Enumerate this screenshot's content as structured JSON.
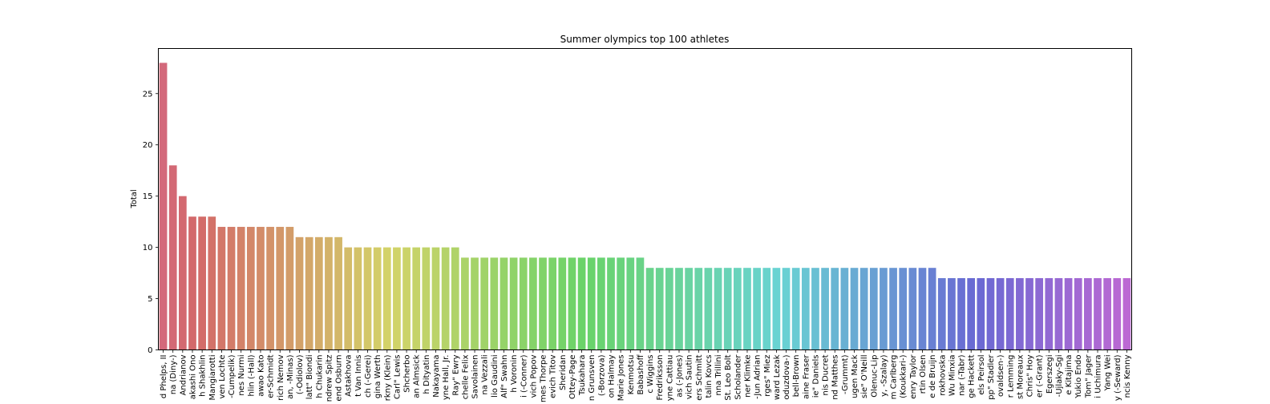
{
  "chart_data": {
    "type": "bar",
    "title": "Summer olympics top 100 athletes",
    "xlabel": "",
    "ylabel": "Total",
    "ylim": [
      0,
      29.4
    ],
    "yticks": [
      0,
      5,
      10,
      15,
      20,
      25
    ],
    "grid": false,
    "legend": "none",
    "categories": [
      "d Phelps, II",
      "na (Diny-)",
      "Andrianov",
      "akashi Ono",
      "h Shakhlin",
      "Mangiarotti",
      "ven Lochte",
      "-Cumpelik)",
      "nes Nurmi",
      "hlin (-Hall)",
      "awao Kato",
      "er-Schmidt",
      "rich Nemov",
      "an, -Minas)",
      "(-Odiolov)",
      "latt\" Biondi",
      "h Chukarin",
      "ndrew Spitz",
      "end Osburn",
      "Astakhova",
      "t Van Innis",
      "ch (-Gerei)",
      "gina Werth",
      "rkny (Klein)",
      "Carl\" Lewis",
      "Shcherbo",
      "an Almsick",
      "h Dityatin",
      "Nakayama",
      "yne Hall, Jr.",
      "Ray\" Ewry",
      "chelle Felix",
      "Savolainen",
      "na Vezzali",
      "lio Gaudini",
      "Alf\" Swahn",
      "h Voronin",
      "i (-Conner)",
      "vich Popov",
      "mes Thorpe",
      "evich Titov",
      "Sheridan",
      "Ottey-Page",
      "Tsukahara",
      "n Grunsven",
      "(-Borzova)",
      "on Halmay",
      "Marie Jones",
      "Kenmotsu",
      "Babashoff",
      "c Wiggins",
      "Fredriksson",
      "yne Cattiau",
      "as (-Jones)",
      "vich Sautin",
      "ers Schmitt",
      "talin Kovcs",
      "nna Trillini",
      "St. Leo Bolt",
      "Scholander",
      "ner Klimke",
      "-Jun Adrian",
      "rges\" Miez",
      "ward Lezak",
      "oduzdova-)",
      "bell-Brown",
      "aine Fraser",
      "ie\" Daniels",
      "nis Ducret",
      "nd Matthes",
      "-Grummt)",
      "ugen Mack",
      "sie\" O'Neill",
      "Olenuc-Lip",
      "y, -Szalay)",
      "m Carlberg",
      "(Koukkari-)",
      "enry Taylor",
      "rtin Olsen",
      "e de Bruijn",
      "rokhovska",
      "Wu Minxia",
      "nar (-Tabr)",
      "ge Hackett",
      "els Peirsol",
      "pp\" Stadler",
      "ovaldsen-)",
      "r Lemming",
      "st Moreaux",
      "Chris\" Hoy",
      "er (-Grant)",
      "Egerszegi",
      "-Ujlaky-Sgi",
      "e Kitajima",
      "Yukio Endo",
      "Tom\" Jager",
      "i Uchimura",
      "Yang Wei",
      "y (-Seward)",
      "ncis Kenny"
    ],
    "values": [
      28,
      18,
      15,
      13,
      13,
      13,
      12,
      12,
      12,
      12,
      12,
      12,
      12,
      12,
      11,
      11,
      11,
      11,
      11,
      10,
      10,
      10,
      10,
      10,
      10,
      10,
      10,
      10,
      10,
      10,
      10,
      9,
      9,
      9,
      9,
      9,
      9,
      9,
      9,
      9,
      9,
      9,
      9,
      9,
      9,
      9,
      9,
      9,
      9,
      9,
      8,
      8,
      8,
      8,
      8,
      8,
      8,
      8,
      8,
      8,
      8,
      8,
      8,
      8,
      8,
      8,
      8,
      8,
      8,
      8,
      8,
      8,
      8,
      8,
      8,
      8,
      8,
      8,
      8,
      8,
      7,
      7,
      7,
      7,
      7,
      7,
      7,
      7,
      7,
      7,
      7,
      7,
      7,
      7,
      7,
      7,
      7,
      7,
      7,
      7
    ]
  }
}
